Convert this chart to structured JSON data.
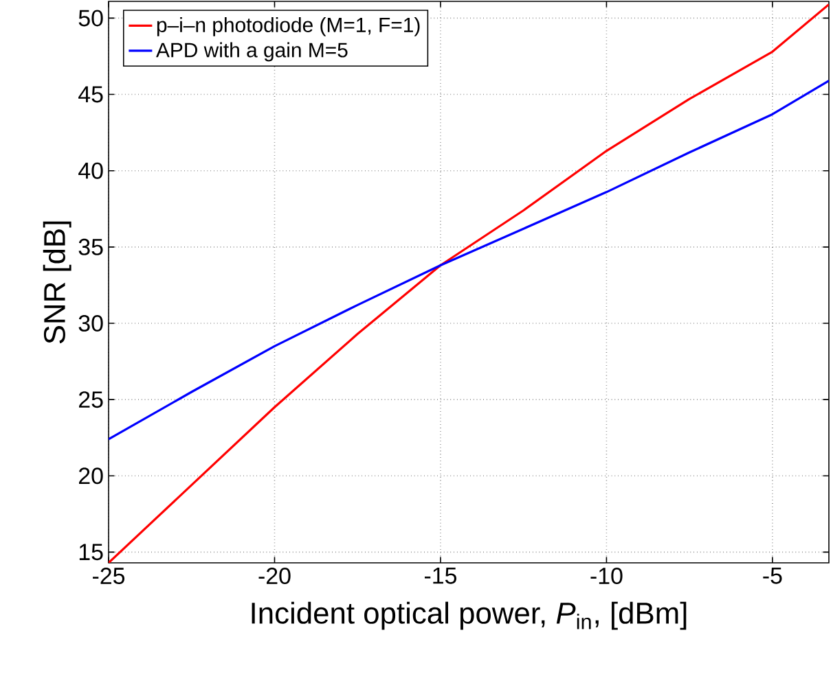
{
  "chart_data": {
    "type": "line",
    "xlabel": "Incident optical power, *P*$_{in}$, [dBm]",
    "ylabel": "SNR [dB]",
    "xlim": [
      -25,
      -3.3
    ],
    "ylim": [
      14.3,
      51.1
    ],
    "xticks": [
      -25,
      -20,
      -15,
      -10,
      -5
    ],
    "yticks": [
      15,
      20,
      25,
      30,
      35,
      40,
      45,
      50
    ],
    "grid": true,
    "legend": "top left",
    "line_style": "solid",
    "marker": "none",
    "series": [
      {
        "name": "p–i–n photodiode (M=1, F=1)",
        "color": "#ff0000",
        "x": [
          -25,
          -22.5,
          -20,
          -17.5,
          -15,
          -12.5,
          -10,
          -7.5,
          -5,
          -3.3
        ],
        "values": [
          14.3,
          19.4,
          24.5,
          29.3,
          33.8,
          37.4,
          41.3,
          44.7,
          47.8,
          50.9
        ]
      },
      {
        "name": "APD with a gain M=5",
        "color": "#0000ff",
        "x": [
          -25,
          -22.5,
          -20,
          -17.5,
          -15,
          -12.5,
          -10,
          -7.5,
          -5,
          -3.3
        ],
        "values": [
          22.4,
          25.5,
          28.5,
          31.2,
          33.8,
          36.2,
          38.6,
          41.2,
          43.7,
          45.9
        ]
      }
    ]
  }
}
